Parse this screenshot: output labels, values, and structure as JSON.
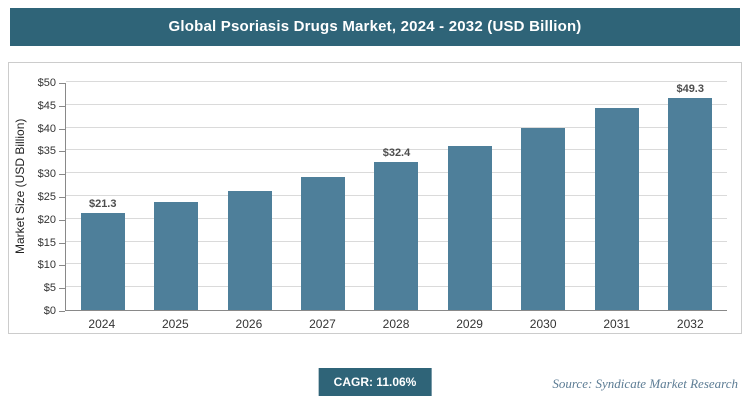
{
  "title": "Global Psoriasis Drugs Market, 2024 - 2032 (USD Billion)",
  "footer": {
    "cagr_label": "CAGR: 11.06%",
    "source": "Source: Syndicate Market Research"
  },
  "colors": {
    "title_bg": "#2f6478",
    "badge_bg": "#2f6478",
    "bar": "#4e7f9a",
    "grid": "#dadada",
    "axis": "#898989",
    "source_text": "#5c7c94"
  },
  "chart_data": {
    "type": "bar",
    "title": "Global Psoriasis Drugs Market, 2024 - 2032 (USD Billion)",
    "categories": [
      "2024",
      "2025",
      "2026",
      "2027",
      "2028",
      "2029",
      "2030",
      "2031",
      "2032"
    ],
    "values": [
      21.3,
      23.7,
      26.2,
      29.2,
      32.4,
      36.0,
      40.0,
      44.4,
      49.3
    ],
    "data_labels": [
      "$21.3",
      "",
      "",
      "",
      "$32.4",
      "",
      "",
      "",
      "$49.3"
    ],
    "xlabel": "",
    "ylabel": "Market Size (USD Billion)",
    "ylim": [
      0,
      50
    ],
    "ytick_step": 5,
    "ytick_labels": [
      "$0",
      "$5",
      "$10",
      "$15",
      "$20",
      "$25",
      "$30",
      "$35",
      "$40",
      "$45",
      "$50"
    ],
    "grid": true,
    "legend": false
  }
}
